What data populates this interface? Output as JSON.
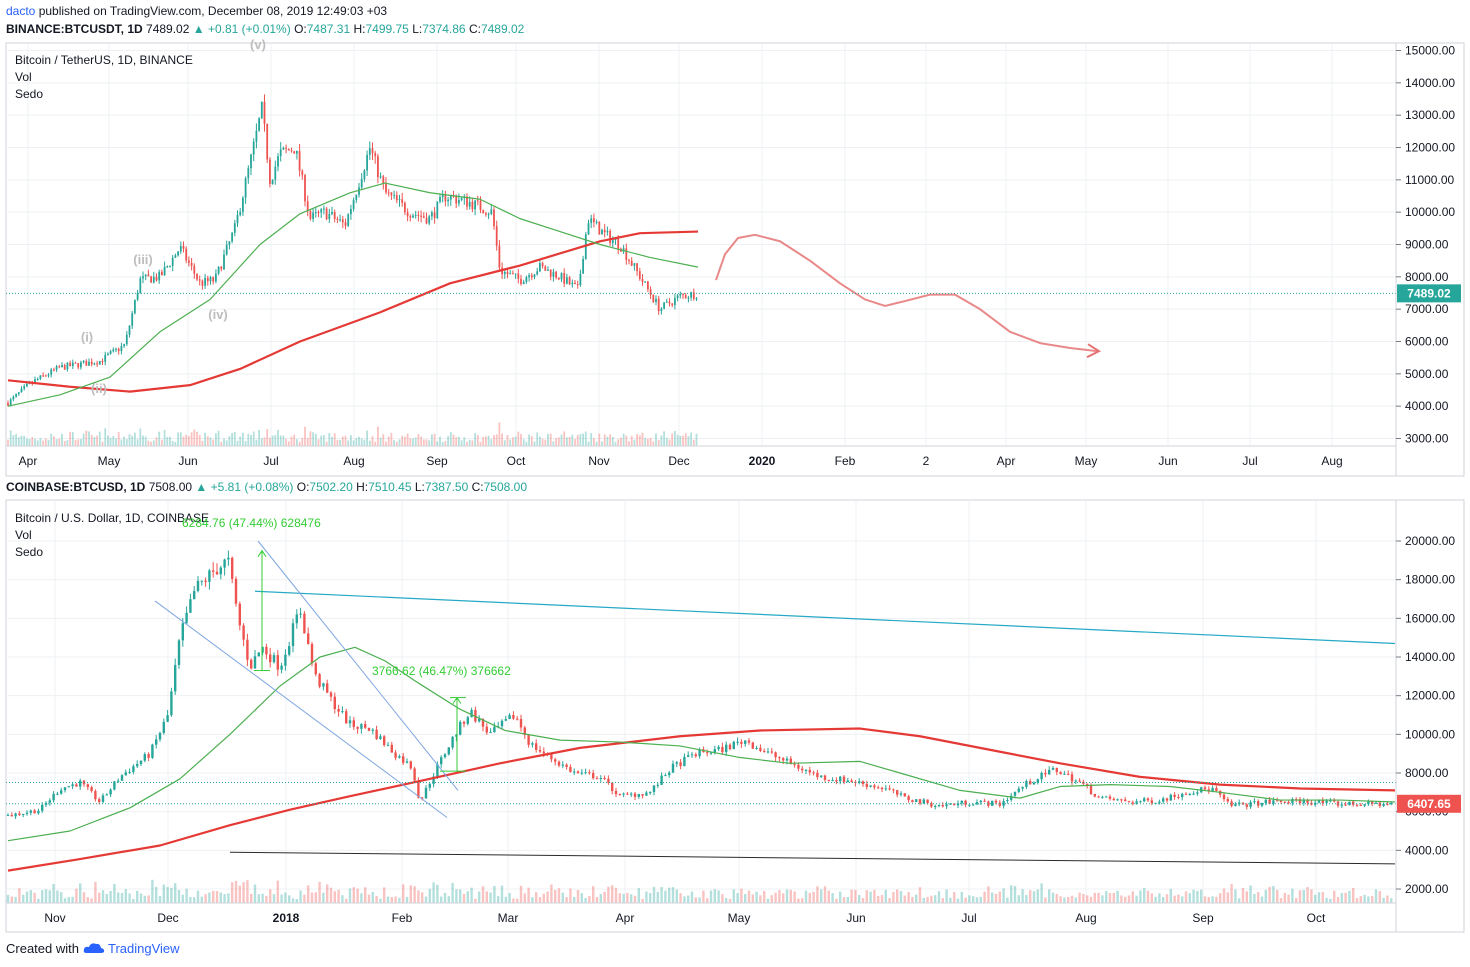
{
  "header": {
    "author": "dacto",
    "published": "published on TradingView.com, December 08, 2019 12:49:03 +03"
  },
  "panel1": {
    "symbol": "BINANCE:BTCUSDT, 1D",
    "close": "7489.02",
    "change": "+0.81 (+0.01%)",
    "o_label": "O:",
    "o": "7487.31",
    "h_label": "H:",
    "h": "7499.75",
    "l_label": "L:",
    "l": "7374.86",
    "c_label": "C:",
    "c": "7489.02",
    "legend_title": "Bitcoin / TetherUS, 1D, BINANCE",
    "legend_vol": "Vol",
    "legend_sedo": "Sedo",
    "price_tag": "7489.02",
    "y_ticks": [
      "15000.00",
      "14000.00",
      "13000.00",
      "12000.00",
      "11000.00",
      "10000.00",
      "9000.00",
      "8000.00",
      "7000.00",
      "6000.00",
      "5000.00",
      "4000.00",
      "3000.00"
    ],
    "x_ticks": [
      "Apr",
      "May",
      "Jun",
      "Jul",
      "Aug",
      "Sep",
      "Oct",
      "Nov",
      "Dec",
      "2020",
      "Feb",
      "2",
      "Apr",
      "May",
      "Jun",
      "Jul",
      "Aug"
    ],
    "wave_labels": [
      "(v)",
      "(iii)",
      "(iv)",
      "(i)",
      "(ii)"
    ]
  },
  "panel2": {
    "symbol": "COINBASE:BTCUSD, 1D",
    "close": "7508.00",
    "change": "+5.81 (+0.08%)",
    "o_label": "O:",
    "o": "7502.20",
    "h_label": "H:",
    "h": "7510.45",
    "l_label": "L:",
    "l": "7387.50",
    "c_label": "C:",
    "c": "7508.00",
    "legend_title": "Bitcoin / U.S. Dollar, 1D, COINBASE",
    "legend_vol": "Vol",
    "legend_sedo": "Sedo",
    "price_tag": "6407.65",
    "y_ticks": [
      "20000.00",
      "18000.00",
      "16000.00",
      "14000.00",
      "12000.00",
      "10000.00",
      "8000.00",
      "6000.00",
      "4000.00",
      "2000.00"
    ],
    "x_ticks": [
      "Nov",
      "Dec",
      "2018",
      "Feb",
      "Mar",
      "Apr",
      "May",
      "Jun",
      "Jul",
      "Aug",
      "Sep",
      "Oct"
    ],
    "measure1": "6284.76 (47.44%) 628476",
    "measure2": "3766.62 (46.47%) 376662"
  },
  "footer": {
    "created": "Created with",
    "brand": "TradingView"
  },
  "colors": {
    "up": "#26a69a",
    "down": "#ef5350",
    "ma_long": "#e53935",
    "ma_short": "#4caf50",
    "projection": "#e57373",
    "trend_cyan": "#26a9c6",
    "channel_blue": "#7ea6e0",
    "measure_green": "#33cc33"
  },
  "chart_data": [
    {
      "type": "candlestick",
      "title": "Bitcoin / TetherUS, 1D, BINANCE",
      "ylim": [
        2700,
        15300
      ],
      "x": [
        "Apr",
        "May",
        "Jun",
        "Jul",
        "Aug",
        "Sep",
        "Oct",
        "Nov",
        "Dec"
      ],
      "close": [
        4100,
        5300,
        7800,
        11200,
        10500,
        10300,
        8200,
        9200,
        7489.02
      ],
      "high": [
        4200,
        5600,
        9000,
        13900,
        12400,
        10900,
        8800,
        10500,
        7600
      ],
      "low": [
        4000,
        5100,
        7300,
        9800,
        9000,
        9500,
        7400,
        7500,
        6500
      ],
      "ma_long_end": 9400,
      "ma_short_end": 8300,
      "last_price": 7489.02
    },
    {
      "type": "candlestick",
      "title": "Bitcoin / U.S. Dollar, 1D, COINBASE",
      "ylim": [
        1300,
        21000
      ],
      "x": [
        "Nov",
        "Dec",
        "2018",
        "Feb",
        "Mar",
        "Apr",
        "May",
        "Jun",
        "Jul",
        "Aug",
        "Sep",
        "Oct"
      ],
      "close": [
        6800,
        16500,
        14000,
        8500,
        10800,
        6800,
        9500,
        7500,
        6300,
        7500,
        6500,
        6407.65
      ],
      "last_price": 6407.65
    }
  ]
}
